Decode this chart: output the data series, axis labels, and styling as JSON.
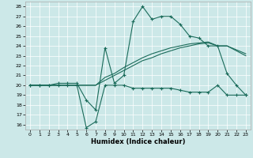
{
  "xlabel": "Humidex (Indice chaleur)",
  "background_color": "#cce8e8",
  "grid_color": "#ffffff",
  "line_color": "#1a6b5a",
  "xlim": [
    -0.5,
    23.5
  ],
  "ylim": [
    15.5,
    28.5
  ],
  "xticks": [
    0,
    1,
    2,
    3,
    4,
    5,
    6,
    7,
    8,
    9,
    10,
    11,
    12,
    13,
    14,
    15,
    16,
    17,
    18,
    19,
    20,
    21,
    22,
    23
  ],
  "yticks": [
    16,
    17,
    18,
    19,
    20,
    21,
    22,
    23,
    24,
    25,
    26,
    27,
    28
  ],
  "series1_x": [
    0,
    1,
    2,
    3,
    4,
    5,
    6,
    7,
    8,
    9,
    10,
    11,
    12,
    13,
    14,
    15,
    16,
    17,
    18,
    19,
    20,
    21,
    22,
    23
  ],
  "series1_y": [
    20,
    20,
    20,
    20,
    20,
    20,
    15.7,
    16.3,
    20,
    20,
    20,
    19.7,
    19.7,
    19.7,
    19.7,
    19.7,
    19.5,
    19.3,
    19.3,
    19.3,
    20,
    19,
    19,
    19
  ],
  "series2_x": [
    0,
    1,
    2,
    3,
    4,
    5,
    6,
    7,
    8,
    9,
    10,
    11,
    12,
    13,
    14,
    15,
    16,
    17,
    18,
    19,
    20,
    21,
    22,
    23
  ],
  "series2_y": [
    20,
    20,
    20,
    20.2,
    20.2,
    20.2,
    18.5,
    17.5,
    23.8,
    20.2,
    21,
    26.5,
    28,
    26.7,
    27,
    27,
    26.2,
    25,
    24.8,
    24,
    24,
    21.2,
    20,
    19
  ],
  "series3_x": [
    0,
    1,
    2,
    3,
    4,
    5,
    6,
    7,
    8,
    9,
    10,
    11,
    12,
    13,
    14,
    15,
    16,
    17,
    18,
    19,
    20,
    21,
    22,
    23
  ],
  "series3_y": [
    20,
    20,
    20,
    20,
    20,
    20,
    20,
    20,
    20.5,
    21,
    21.5,
    22,
    22.5,
    22.8,
    23.2,
    23.5,
    23.8,
    24,
    24.2,
    24.3,
    24,
    24,
    23.5,
    23
  ],
  "series4_x": [
    0,
    1,
    2,
    3,
    4,
    5,
    6,
    7,
    8,
    9,
    10,
    11,
    12,
    13,
    14,
    15,
    16,
    17,
    18,
    19,
    20,
    21,
    22,
    23
  ],
  "series4_y": [
    20,
    20,
    20,
    20,
    20,
    20,
    20,
    20,
    20.8,
    21.2,
    21.8,
    22.3,
    22.8,
    23.2,
    23.5,
    23.8,
    24.0,
    24.2,
    24.3,
    24.4,
    24,
    24,
    23.6,
    23.2
  ]
}
